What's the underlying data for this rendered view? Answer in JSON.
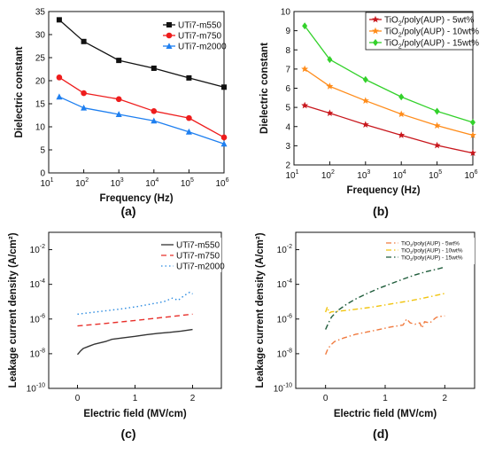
{
  "chart_data": [
    {
      "panel": "(a)",
      "type": "line",
      "xlabel": "Frequency (Hz)",
      "ylabel": "Dielectric constant",
      "xscale": "log",
      "xlim": [
        10,
        1000000
      ],
      "ylim": [
        0,
        35
      ],
      "xticks": [
        10,
        100,
        1000,
        10000,
        100000,
        1000000
      ],
      "xtick_labels": [
        [
          "10",
          "1"
        ],
        [
          "10",
          "2"
        ],
        [
          "10",
          "3"
        ],
        [
          "10",
          "4"
        ],
        [
          "10",
          "5"
        ],
        [
          "10",
          "6"
        ]
      ],
      "yticks": [
        0,
        5,
        10,
        15,
        20,
        25,
        30,
        35
      ],
      "ytick_labels": [
        "0",
        "5",
        "10",
        "15",
        "20",
        "25",
        "30",
        "35"
      ],
      "legend_position": "top-right",
      "series": [
        {
          "name": "UTi7-m550",
          "color": "#111111",
          "marker": "square",
          "style": "solid",
          "x": [
            20,
            100,
            1000,
            10000,
            100000,
            1000000
          ],
          "y": [
            33.2,
            28.5,
            24.4,
            22.7,
            20.6,
            18.6
          ]
        },
        {
          "name": "UTi7-m750",
          "color": "#ee1c1c",
          "marker": "circle",
          "style": "solid",
          "x": [
            20,
            100,
            1000,
            10000,
            100000,
            1000000
          ],
          "y": [
            20.7,
            17.3,
            16.0,
            13.4,
            11.9,
            7.7
          ]
        },
        {
          "name": "UTi7-m2000",
          "color": "#1e7ff0",
          "marker": "triangle",
          "style": "solid",
          "x": [
            20,
            100,
            1000,
            10000,
            100000,
            1000000
          ],
          "y": [
            16.5,
            14.1,
            12.7,
            11.3,
            8.9,
            6.3
          ]
        }
      ]
    },
    {
      "panel": "(b)",
      "type": "line",
      "xlabel": "Frequency (Hz)",
      "ylabel": "Dielectric constant",
      "xscale": "log",
      "xlim": [
        10,
        1000000
      ],
      "ylim": [
        2,
        10
      ],
      "xticks": [
        10,
        100,
        1000,
        10000,
        100000,
        1000000
      ],
      "xtick_labels": [
        [
          "10",
          "1"
        ],
        [
          "10",
          "2"
        ],
        [
          "10",
          "3"
        ],
        [
          "10",
          "4"
        ],
        [
          "10",
          "5"
        ],
        [
          "10",
          "6"
        ]
      ],
      "yticks": [
        2,
        3,
        4,
        5,
        6,
        7,
        8,
        9,
        10
      ],
      "ytick_labels": [
        "2",
        "3",
        "4",
        "5",
        "6",
        "7",
        "8",
        "9",
        "10"
      ],
      "legend_position": "top-right",
      "series": [
        {
          "name": "TiO2/poly(AUP) - 5wt%",
          "name_parts": [
            "TiO",
            "2",
            "/poly(AUP) - 5wt%"
          ],
          "color": "#c8171d",
          "marker": "star",
          "style": "solid",
          "x": [
            20,
            100,
            1000,
            10000,
            100000,
            1000000
          ],
          "y": [
            5.1,
            4.7,
            4.1,
            3.55,
            3.02,
            2.62
          ]
        },
        {
          "name": "TiO2/poly(AUP) - 10wt%",
          "name_parts": [
            "TiO",
            "2",
            "/poly(AUP) - 10wt%"
          ],
          "color": "#ff8c1a",
          "marker": "star",
          "style": "solid",
          "x": [
            20,
            100,
            1000,
            10000,
            100000,
            1000000
          ],
          "y": [
            7.0,
            6.1,
            5.35,
            4.65,
            4.05,
            3.55
          ]
        },
        {
          "name": "TiO2/poly(AUP) - 15wt%",
          "name_parts": [
            "TiO",
            "2",
            "/poly(AUP) - 15wt%"
          ],
          "color": "#33d12b",
          "marker": "diamond",
          "style": "solid",
          "x": [
            20,
            100,
            1000,
            10000,
            100000,
            1000000
          ],
          "y": [
            9.25,
            7.5,
            6.45,
            5.55,
            4.8,
            4.22
          ]
        }
      ]
    },
    {
      "panel": "(c)",
      "type": "line",
      "xlabel": "Electric field (MV/cm)",
      "ylabel": "Leakage current density (A/cm²)",
      "yscale": "log",
      "xlim": [
        -0.5,
        2.5
      ],
      "ylim": [
        1e-10,
        0.1
      ],
      "xticks": [
        0,
        1,
        2
      ],
      "xtick_labels": [
        "0",
        "1",
        "2"
      ],
      "yticks": [
        1e-10,
        1e-08,
        1e-06,
        0.0001,
        0.01
      ],
      "ytick_labels": [
        [
          "10",
          "-10"
        ],
        [
          "10",
          "-8"
        ],
        [
          "10",
          "-6"
        ],
        [
          "10",
          "-4"
        ],
        [
          "10",
          "-2"
        ]
      ],
      "legend_position": "top-right",
      "series": [
        {
          "name": "UTi7-m550",
          "color": "#333333",
          "style": "solid",
          "x": [
            0,
            0.05,
            0.1,
            0.2,
            0.3,
            0.5,
            0.6,
            0.8,
            1.0,
            1.2,
            1.4,
            1.6,
            1.8,
            2.0
          ],
          "y": [
            9e-09,
            1.4e-08,
            2e-08,
            2.7e-08,
            3.6e-08,
            5.2e-08,
            6.8e-08,
            8.3e-08,
            1e-07,
            1.25e-07,
            1.5e-07,
            1.7e-07,
            2e-07,
            2.5e-07
          ]
        },
        {
          "name": "UTi7-m750",
          "color": "#e8302b",
          "style": "dashed",
          "x": [
            0,
            0.5,
            1.0,
            1.5,
            2.0
          ],
          "y": [
            4e-07,
            5.6e-07,
            8.2e-07,
            1.25e-06,
            1.9e-06
          ]
        },
        {
          "name": "UTi7-m2000",
          "color": "#2a8ae0",
          "style": "dotted",
          "x": [
            0,
            0.25,
            0.5,
            0.75,
            1.0,
            1.25,
            1.5,
            1.65,
            1.75,
            1.85,
            1.95,
            2.0
          ],
          "y": [
            1.9e-06,
            2.4e-06,
            3e-06,
            3.8e-06,
            5e-06,
            7e-06,
            1e-05,
            1.6e-05,
            1.2e-05,
            2.2e-05,
            3.5e-05,
            2.8e-05
          ]
        }
      ]
    },
    {
      "panel": "(d)",
      "type": "line",
      "xlabel": "Electric field (MV/cm)",
      "ylabel": "Leakage current density (A/cm²)",
      "yscale": "log",
      "xlim": [
        -0.5,
        2.5
      ],
      "ylim": [
        1e-10,
        0.1
      ],
      "xticks": [
        0,
        1,
        2
      ],
      "xtick_labels": [
        "0",
        "1",
        "2"
      ],
      "yticks": [
        1e-10,
        1e-08,
        1e-06,
        0.0001,
        0.01
      ],
      "ytick_labels": [
        [
          "10",
          "-10"
        ],
        [
          "10",
          "-8"
        ],
        [
          "10",
          "-6"
        ],
        [
          "10",
          "-4"
        ],
        [
          "10",
          "-2"
        ]
      ],
      "legend_position": "top-right",
      "series": [
        {
          "name": "TiO2/poly(AUP) - 5wt%",
          "name_parts": [
            "TiO",
            "2",
            "/poly(AUP) - 5wt%"
          ],
          "color": "#f07a3e",
          "style": "dashdot",
          "x": [
            0,
            0.03,
            0.08,
            0.15,
            0.3,
            0.5,
            0.7,
            0.9,
            1.1,
            1.3,
            1.36,
            1.42,
            1.5,
            1.58,
            1.62,
            1.66,
            1.75,
            1.85,
            1.9,
            2.0
          ],
          "y": [
            9e-09,
            1.6e-08,
            3e-08,
            5e-08,
            8e-08,
            1.3e-07,
            1.8e-07,
            2.5e-07,
            3.5e-07,
            4.5e-07,
            1e-06,
            6e-07,
            5e-07,
            6e-07,
            3e-07,
            7e-07,
            6e-07,
            1.2e-06,
            1.4e-06,
            1.5e-06
          ]
        },
        {
          "name": "TiO2/poly(AUP) - 10wt%",
          "name_parts": [
            "TiO",
            "2",
            "/poly(AUP) - 10wt%"
          ],
          "color": "#f1c40f",
          "style": "dashdot",
          "x": [
            0,
            0.03,
            0.06,
            0.1,
            0.2,
            0.4,
            0.6,
            0.8,
            1.0,
            1.2,
            1.4,
            1.6,
            1.8,
            2.0
          ],
          "y": [
            2.5e-06,
            5e-06,
            2.2e-06,
            2.6e-06,
            2.8e-06,
            3.3e-06,
            4e-06,
            5e-06,
            6.5e-06,
            8.5e-06,
            1.1e-05,
            1.5e-05,
            2.1e-05,
            3e-05
          ]
        },
        {
          "name": "TiO2/poly(AUP) - 15wt%",
          "name_parts": [
            "TiO",
            "2",
            "/poly(AUP) - 15wt%"
          ],
          "color": "#1e5c3a",
          "style": "dashdot",
          "x": [
            0,
            0.05,
            0.1,
            0.2,
            0.35,
            0.5,
            0.7,
            0.9,
            1.1,
            1.3,
            1.5,
            1.7,
            1.9,
            2.0
          ],
          "y": [
            2.5e-07,
            6e-07,
            1.3e-06,
            3e-06,
            7e-06,
            1.4e-05,
            3e-05,
            6e-05,
            0.00011,
            0.0002,
            0.00035,
            0.00055,
            0.0008,
            0.001
          ]
        }
      ]
    }
  ]
}
